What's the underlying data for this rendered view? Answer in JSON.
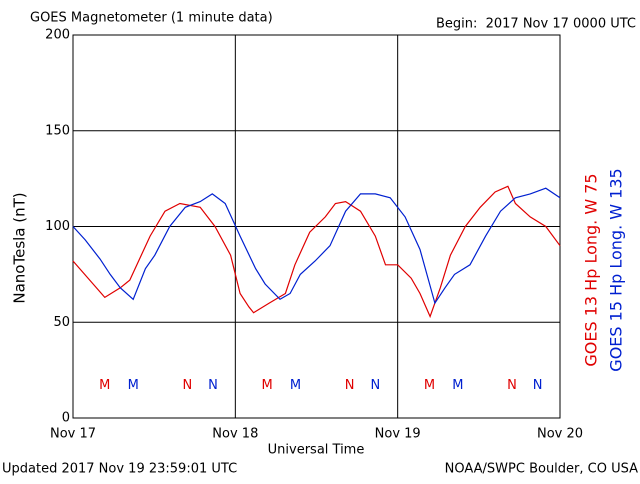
{
  "chart_data": {
    "type": "line",
    "title": "GOES Magnetometer (1 minute data)",
    "subtitle": "Begin:  2017 Nov 17 0000 UTC",
    "ylabel": "NanoTesla (nT)",
    "xlabel": "Universal Time",
    "footer_left": "Updated 2017 Nov 19 23:59:01 UTC",
    "footer_right": "NOAA/SWPC Boulder, CO USA",
    "xlim": [
      0,
      72
    ],
    "xticks": [
      {
        "value": 0,
        "label": "Nov 17"
      },
      {
        "value": 24,
        "label": "Nov 18"
      },
      {
        "value": 48,
        "label": "Nov 19"
      },
      {
        "value": 72,
        "label": "Nov 20"
      }
    ],
    "ylim": [
      0,
      200
    ],
    "yticks": [
      0,
      50,
      100,
      150,
      200
    ],
    "grid": true,
    "legend": "right",
    "series": [
      {
        "name": "GOES 13 Hp  Long. W 75",
        "color": "#e00000",
        "x": [
          0,
          4.7,
          7,
          8.4,
          11.4,
          13.6,
          15.8,
          18.8,
          21,
          23.3,
          24.7,
          26,
          26.7,
          29,
          31.4,
          32.8,
          35,
          37.3,
          38.8,
          40.3,
          42.5,
          44.7,
          46.2,
          48,
          50,
          51.3,
          52.8,
          54.3,
          55.8,
          58,
          60.2,
          62.4,
          64.3,
          65.4,
          67.6,
          69.9,
          72
        ],
        "values": [
          82,
          63,
          68,
          72,
          95,
          108,
          112,
          110,
          100,
          85,
          65,
          58,
          55,
          60,
          65,
          80,
          97,
          105,
          112,
          113,
          108,
          95,
          80,
          80,
          73,
          65,
          53,
          68,
          85,
          100,
          110,
          118,
          121,
          112,
          105,
          100,
          90
        ]
      },
      {
        "name": "GOES 15 Hp  Long. W 135",
        "color": "#0020d0",
        "x": [
          0,
          1.8,
          4,
          5.5,
          7,
          8.9,
          10.7,
          12.1,
          14.3,
          16.6,
          18.8,
          20.6,
          22.5,
          24.7,
          27,
          28.4,
          30.6,
          32.1,
          33.6,
          35.8,
          38,
          40.3,
          42.5,
          44.7,
          46.9,
          49.1,
          51.3,
          53.5,
          55,
          56.4,
          58.7,
          61,
          63.2,
          65.4,
          67.6,
          69.9,
          72
        ],
        "values": [
          100,
          93,
          83,
          75,
          68,
          62,
          78,
          85,
          100,
          110,
          113,
          117,
          112,
          95,
          78,
          70,
          62,
          65,
          75,
          82,
          90,
          108,
          117,
          117,
          115,
          105,
          88,
          60,
          68,
          75,
          80,
          95,
          108,
          115,
          117,
          120,
          115
        ]
      }
    ],
    "annotations": [
      {
        "text": "M",
        "x": 4.7,
        "y": 17,
        "color": "#e00000"
      },
      {
        "text": "M",
        "x": 8.9,
        "y": 17,
        "color": "#0020d0"
      },
      {
        "text": "N",
        "x": 16.9,
        "y": 17,
        "color": "#e00000"
      },
      {
        "text": "N",
        "x": 20.7,
        "y": 17,
        "color": "#0020d0"
      },
      {
        "text": "M",
        "x": 28.7,
        "y": 17,
        "color": "#e00000"
      },
      {
        "text": "M",
        "x": 32.9,
        "y": 17,
        "color": "#0020d0"
      },
      {
        "text": "N",
        "x": 40.9,
        "y": 17,
        "color": "#e00000"
      },
      {
        "text": "N",
        "x": 44.7,
        "y": 17,
        "color": "#0020d0"
      },
      {
        "text": "M",
        "x": 52.7,
        "y": 17,
        "color": "#e00000"
      },
      {
        "text": "M",
        "x": 56.9,
        "y": 17,
        "color": "#0020d0"
      },
      {
        "text": "N",
        "x": 64.9,
        "y": 17,
        "color": "#e00000"
      },
      {
        "text": "N",
        "x": 68.7,
        "y": 17,
        "color": "#0020d0"
      }
    ]
  }
}
